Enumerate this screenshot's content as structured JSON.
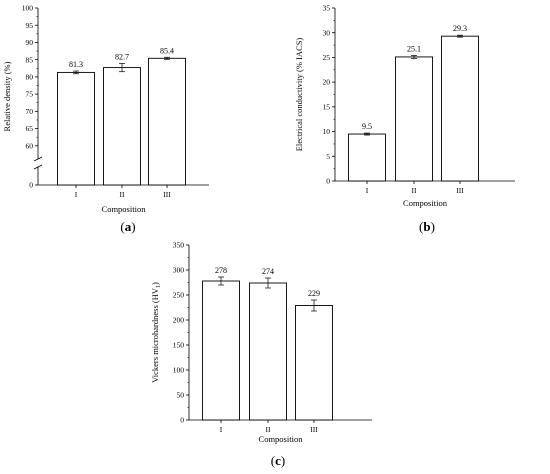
{
  "figure": {
    "panel_labels": [
      "(a)",
      "(b)",
      "(c)"
    ]
  },
  "chart_data": [
    {
      "type": "bar",
      "panel": "(a)",
      "categories": [
        "I",
        "II",
        "III"
      ],
      "values": [
        81.3,
        82.7,
        85.4
      ],
      "errors": [
        0.4,
        1.2,
        0.3
      ],
      "value_labels": [
        "81.3",
        "82.7",
        "85.4"
      ],
      "xlabel": "Composition",
      "ylabel": "Relative density (%)",
      "ylim": [
        55,
        100
      ],
      "y_axis_break": true,
      "yticks": [
        60,
        65,
        70,
        75,
        80,
        85,
        90,
        95,
        100
      ],
      "ytick_labels": [
        "60",
        "65",
        "70",
        "75",
        "80",
        "85",
        "90",
        "95",
        "100"
      ],
      "bottom_tick_label": "0",
      "grid": false
    },
    {
      "type": "bar",
      "panel": "(b)",
      "categories": [
        "I",
        "II",
        "III"
      ],
      "values": [
        9.5,
        25.1,
        29.3
      ],
      "errors": [
        0.2,
        0.3,
        0.2
      ],
      "value_labels": [
        "9.5",
        "25.1",
        "29.3"
      ],
      "xlabel": "Composition",
      "ylabel": "Electrical conductivity (% IACS)",
      "ylim": [
        0,
        35
      ],
      "yticks": [
        0,
        5,
        10,
        15,
        20,
        25,
        30,
        35
      ],
      "ytick_labels": [
        "0",
        "5",
        "10",
        "15",
        "20",
        "25",
        "30",
        "35"
      ],
      "grid": false
    },
    {
      "type": "bar",
      "panel": "(c)",
      "categories": [
        "I",
        "II",
        "III"
      ],
      "values": [
        278,
        274,
        229
      ],
      "errors": [
        8,
        10,
        11
      ],
      "value_labels": [
        "278",
        "274",
        "229"
      ],
      "xlabel": "Composition",
      "ylabel": "Vickers microhardness (HV",
      "ylabel_subscript": "1",
      "ylabel_suffix": ")",
      "ylim": [
        0,
        350
      ],
      "yticks": [
        0,
        50,
        100,
        150,
        200,
        250,
        300,
        350
      ],
      "ytick_labels": [
        "0",
        "50",
        "100",
        "150",
        "200",
        "250",
        "300",
        "350"
      ],
      "grid": false
    }
  ]
}
